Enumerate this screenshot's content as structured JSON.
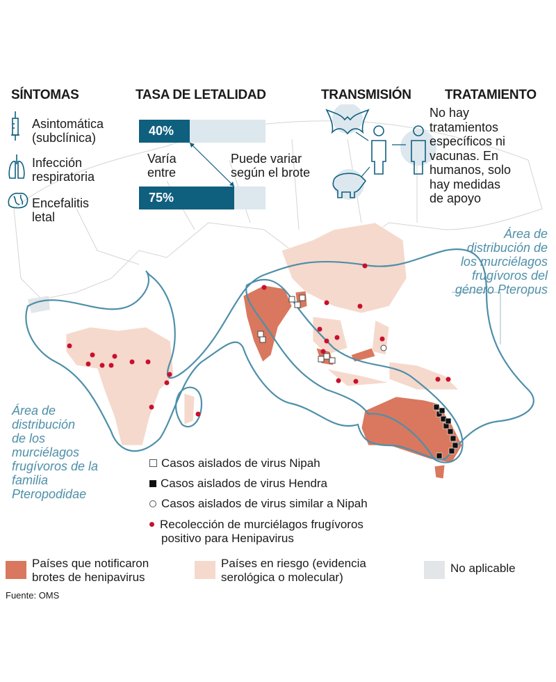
{
  "headers": {
    "symptoms": "SÍNTOMAS",
    "lethality": "TASA DE LETALIDAD",
    "transmission": "TRANSMISIÓN",
    "treatment": "TRATAMIENTO"
  },
  "symptoms": [
    {
      "icon": "syringe-icon",
      "label1": "Asintomática",
      "label2": "(subclínica)"
    },
    {
      "icon": "lungs-icon",
      "label1": "Infección",
      "label2": "respiratoria"
    },
    {
      "icon": "brain-icon",
      "label1": "Encefalitis",
      "label2": "letal"
    }
  ],
  "lethality": {
    "min_label": "40%",
    "min_value": 40,
    "max_label": "75%",
    "max_value": 75,
    "varies1": "Varía",
    "varies2": "entre",
    "note1": "Puede variar",
    "note2": "según el brote"
  },
  "transmission": {
    "icons": [
      "bat-icon",
      "pig-icon",
      "person-icon",
      "person-icon"
    ]
  },
  "treatment": {
    "lines": [
      "No hay",
      "tratamientos",
      "específicos ni",
      "vacunas. En",
      "humanos, solo",
      "hay medidas",
      "de apoyo"
    ]
  },
  "map": {
    "pteropus_label": [
      "Área de",
      "distribución de",
      "los murciélagos",
      "frugívoros del",
      "género Pteropus"
    ],
    "pteropodidae_label": [
      "Área de",
      "distribución",
      "de los",
      "murciélagos",
      "frugívoros de la",
      "familia",
      "Pteropodidae"
    ]
  },
  "legend": {
    "markers": [
      {
        "symbol": "open-square",
        "label": "Casos aislados de  virus Nipah"
      },
      {
        "symbol": "filled-square",
        "label": "Casos aislados de  virus Hendra"
      },
      {
        "symbol": "open-circle",
        "label": "Casos aislados de virus similar a Nipah"
      },
      {
        "symbol": "red-dot",
        "label1": "Recolección de murciélagos frugívoros",
        "label2": "positivo para Henipavirus"
      }
    ],
    "areas": [
      {
        "color": "#d9785e",
        "label1": "Países que notificaron",
        "label2": "brotes de henipavirus"
      },
      {
        "color": "#f5d9cc",
        "label1": "Países en riesgo (evidencia",
        "label2": "serológica o molecular)"
      },
      {
        "color": "#e3e6e8",
        "label1": "No aplicable"
      }
    ]
  },
  "source": "Fuente: OMS",
  "colors": {
    "accent": "#0f5f7e",
    "outline": "#4e8fa9",
    "dot": "#c8102e"
  }
}
